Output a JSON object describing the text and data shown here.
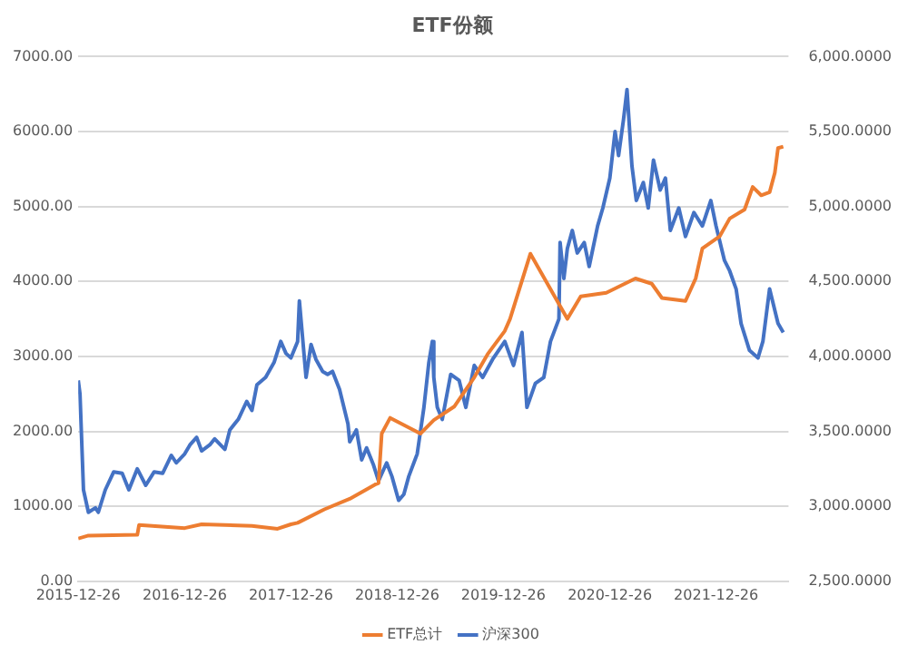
{
  "chart_data": {
    "type": "line",
    "title": "ETF份额",
    "legend": "bottom",
    "grid": "y",
    "marker": "none",
    "line_style": "solid",
    "xlim": [
      "2015-12-26",
      "2022-09-01"
    ],
    "xticks": [
      "2015-12-26",
      "2016-12-26",
      "2017-12-26",
      "2018-12-26",
      "2019-12-26",
      "2020-12-26",
      "2021-12-26"
    ],
    "ylim": [
      0,
      7000
    ],
    "yticks": [
      {
        "value": 0,
        "label": "0.00"
      },
      {
        "value": 1000,
        "label": "1000.00"
      },
      {
        "value": 2000,
        "label": "2000.00"
      },
      {
        "value": 3000,
        "label": "3000.00"
      },
      {
        "value": 4000,
        "label": "4000.00"
      },
      {
        "value": 5000,
        "label": "5000.00"
      },
      {
        "value": 6000,
        "label": "6000.00"
      },
      {
        "value": 7000,
        "label": "7000.00"
      }
    ],
    "y2lim": [
      2500,
      6000
    ],
    "y2ticks": [
      {
        "value": 2500,
        "label": "2,500.0000"
      },
      {
        "value": 3000,
        "label": "3,000.0000"
      },
      {
        "value": 3500,
        "label": "3,500.0000"
      },
      {
        "value": 4000,
        "label": "4,000.0000"
      },
      {
        "value": 4500,
        "label": "4,500.0000"
      },
      {
        "value": 5000,
        "label": "5,000.0000"
      },
      {
        "value": 5500,
        "label": "5,500.0000"
      },
      {
        "value": 6000,
        "label": "6,000.0000"
      }
    ],
    "series": [
      {
        "name": "ETF总计",
        "color": "#ed7d31",
        "x": [
          "2015-12-26",
          "2016-01-30",
          "2016-07-16",
          "2016-07-22",
          "2016-12-26",
          "2017-02-22",
          "2017-08-14",
          "2017-11-10",
          "2017-12-26",
          "2018-01-18",
          "2018-04-20",
          "2018-07-16",
          "2018-10-11",
          "2018-10-23",
          "2018-11-03",
          "2018-12-02",
          "2019-03-16",
          "2019-05-01",
          "2019-07-10",
          "2019-09-17",
          "2019-11-02",
          "2019-12-31",
          "2020-01-18",
          "2020-03-28",
          "2020-08-02",
          "2020-09-17",
          "2020-12-14",
          "2021-03-24",
          "2021-05-19",
          "2021-06-23",
          "2021-09-12",
          "2021-10-17",
          "2021-11-09",
          "2022-01-07",
          "2022-02-11",
          "2022-04-03",
          "2022-05-01",
          "2022-05-30",
          "2022-06-28",
          "2022-07-16",
          "2022-07-27",
          "2022-08-14"
        ],
        "values": [
          570,
          610,
          620,
          750,
          710,
          760,
          740,
          700,
          760,
          780,
          960,
          1100,
          1290,
          1310,
          1970,
          2180,
          1970,
          2150,
          2330,
          2720,
          3030,
          3340,
          3500,
          4370,
          3500,
          3800,
          3850,
          4040,
          3970,
          3780,
          3740,
          4040,
          4440,
          4600,
          4840,
          4960,
          5260,
          5150,
          5190,
          5450,
          5780,
          5800
        ]
      },
      {
        "name": "沪深300",
        "color": "#4472c4",
        "axis": "y2",
        "x": [
          "2015-12-26",
          "2016-01-01",
          "2016-01-13",
          "2016-01-30",
          "2016-02-23",
          "2016-03-04",
          "2016-03-28",
          "2016-04-26",
          "2016-05-25",
          "2016-06-17",
          "2016-07-16",
          "2016-08-14",
          "2016-09-12",
          "2016-10-11",
          "2016-11-10",
          "2016-11-27",
          "2016-12-26",
          "2017-01-13",
          "2017-02-05",
          "2017-02-22",
          "2017-03-22",
          "2017-04-08",
          "2017-05-13",
          "2017-05-30",
          "2017-06-28",
          "2017-07-27",
          "2017-08-14",
          "2017-08-31",
          "2017-09-30",
          "2017-10-29",
          "2017-11-21",
          "2017-12-09",
          "2017-12-26",
          "2018-01-18",
          "2018-01-24",
          "2018-02-16",
          "2018-03-05",
          "2018-03-22",
          "2018-04-14",
          "2018-05-01",
          "2018-05-18",
          "2018-06-11",
          "2018-07-10",
          "2018-07-16",
          "2018-08-08",
          "2018-08-26",
          "2018-09-12",
          "2018-10-05",
          "2018-10-23",
          "2018-11-20",
          "2018-12-08",
          "2018-12-31",
          "2019-01-18",
          "2019-02-04",
          "2019-03-05",
          "2019-03-28",
          "2019-04-14",
          "2019-04-26",
          "2019-05-01",
          "2019-05-13",
          "2019-05-30",
          "2019-06-28",
          "2019-07-27",
          "2019-08-19",
          "2019-09-17",
          "2019-10-16",
          "2019-11-19",
          "2019-12-31",
          "2020-01-30",
          "2020-02-28",
          "2020-03-16",
          "2020-04-14",
          "2020-05-13",
          "2020-06-05",
          "2020-07-04",
          "2020-07-08",
          "2020-07-21",
          "2020-08-02",
          "2020-08-19",
          "2020-09-05",
          "2020-09-29",
          "2020-10-16",
          "2020-11-14",
          "2020-12-02",
          "2020-12-26",
          "2021-01-13",
          "2021-01-25",
          "2021-02-11",
          "2021-02-23",
          "2021-03-12",
          "2021-03-27",
          "2021-04-20",
          "2021-05-07",
          "2021-05-25",
          "2021-06-17",
          "2021-07-05",
          "2021-07-22",
          "2021-08-20",
          "2021-09-12",
          "2021-10-11",
          "2021-11-09",
          "2021-12-08",
          "2021-12-26",
          "2022-01-24",
          "2022-02-11",
          "2022-03-05",
          "2022-03-22",
          "2022-04-20",
          "2022-05-19",
          "2022-06-05",
          "2022-06-28",
          "2022-07-27",
          "2022-08-14"
        ],
        "values": [
          3840,
          3750,
          3110,
          2960,
          2990,
          2960,
          3110,
          3230,
          3220,
          3110,
          3250,
          3140,
          3230,
          3220,
          3340,
          3290,
          3350,
          3410,
          3460,
          3370,
          3410,
          3450,
          3380,
          3510,
          3580,
          3700,
          3640,
          3810,
          3860,
          3960,
          4100,
          4020,
          3990,
          4100,
          4370,
          3860,
          4080,
          3980,
          3900,
          3880,
          3900,
          3780,
          3550,
          3430,
          3510,
          3310,
          3390,
          3280,
          3170,
          3290,
          3200,
          3040,
          3080,
          3200,
          3350,
          3660,
          3960,
          4100,
          3860,
          3660,
          3580,
          3880,
          3840,
          3660,
          3940,
          3860,
          3980,
          4100,
          3940,
          4160,
          3660,
          3820,
          3860,
          4100,
          4250,
          4760,
          4520,
          4720,
          4840,
          4690,
          4760,
          4600,
          4870,
          4990,
          5190,
          5500,
          5340,
          5580,
          5780,
          5270,
          5040,
          5160,
          4990,
          5310,
          5110,
          5190,
          4840,
          4990,
          4800,
          4960,
          4870,
          5040,
          4870,
          4640,
          4570,
          4450,
          4220,
          4040,
          3990,
          4100,
          4450,
          4220,
          4160
        ]
      }
    ]
  }
}
